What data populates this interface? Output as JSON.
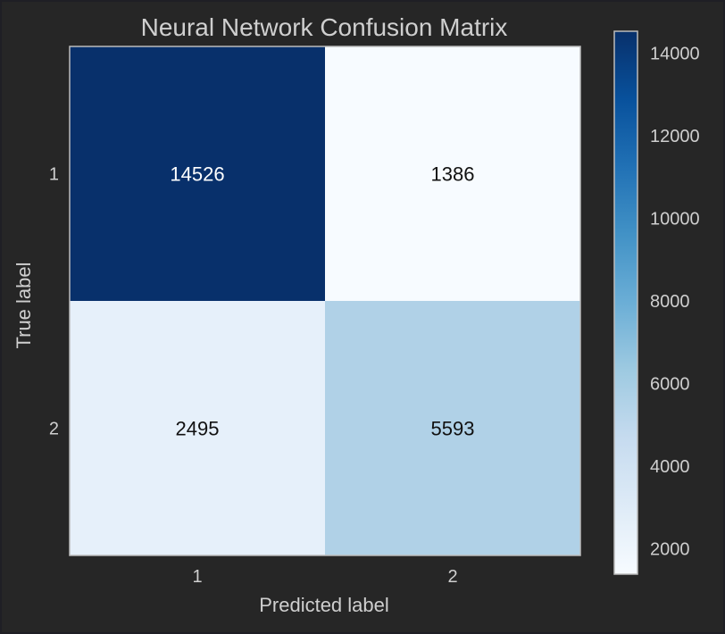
{
  "chart_data": {
    "type": "heatmap",
    "title": "Neural Network Confusion Matrix",
    "xlabel": "Predicted label",
    "ylabel": "True label",
    "x_categories": [
      "1",
      "2"
    ],
    "y_categories": [
      "1",
      "2"
    ],
    "matrix": [
      [
        14526,
        1386
      ],
      [
        2495,
        5593
      ]
    ],
    "colormap": "Blues",
    "color_range": [
      1386,
      14526
    ],
    "colorbar_ticks": [
      "2000",
      "4000",
      "6000",
      "8000",
      "10000",
      "12000",
      "14000"
    ],
    "colorbar_tick_values": [
      2000,
      4000,
      6000,
      8000,
      10000,
      12000,
      14000
    ],
    "grid": false
  },
  "colors": {
    "background": "#262626",
    "text": "#cfcfcf",
    "spine": "#bcbcbc",
    "cell_text_dark": "#111111",
    "cell_text_light": "#ffffff"
  }
}
